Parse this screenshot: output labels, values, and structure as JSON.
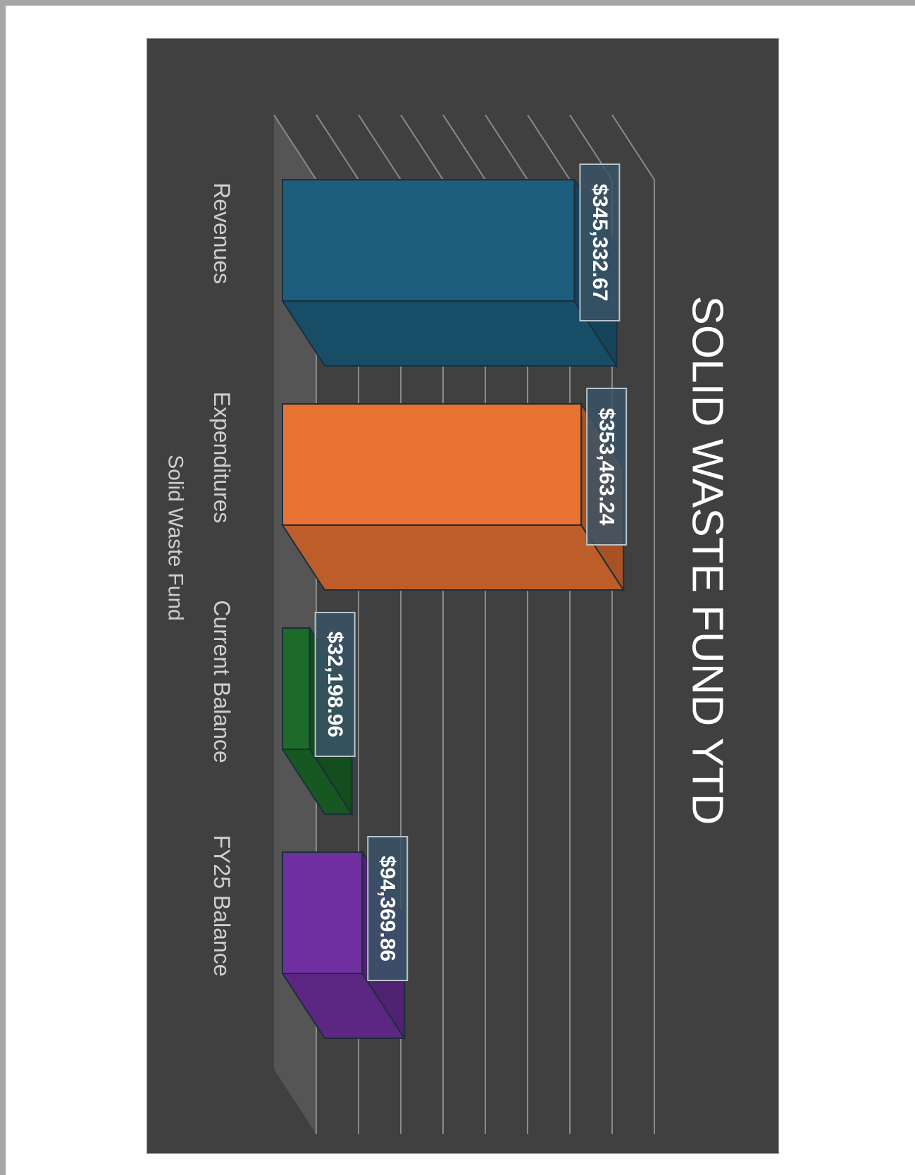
{
  "chart_data": {
    "type": "bar",
    "title": "SOLID WASTE FUND YTD",
    "xlabel": "Solid Waste Fund",
    "ylabel": "",
    "categories": [
      "Revenues",
      "Expenditures",
      "Current Balance",
      "FY25 Balance"
    ],
    "values": [
      345332.67,
      353463.24,
      32198.96,
      94369.86
    ],
    "data_labels": [
      "$345,332.67",
      "$353,463.24",
      "$32,198.96",
      "$94,369.86"
    ],
    "ylim": [
      0,
      400000
    ],
    "grid": true,
    "legend": "none",
    "rotation": "90deg-clockwise",
    "colors": {
      "series": [
        "#1d5e7f",
        "#e77232",
        "#1c6b29",
        "#6f2f9f"
      ],
      "background": "#404040",
      "floor": "#555555",
      "gridline": "#8a8a8a",
      "text": "#cfcfcf"
    }
  }
}
